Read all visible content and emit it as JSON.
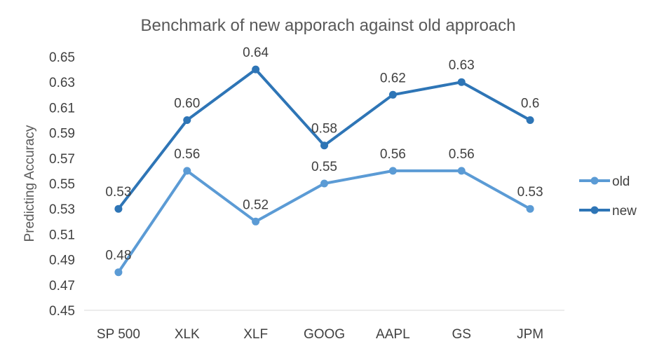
{
  "chart_data": {
    "type": "line",
    "title": "Benchmark of new apporach against old approach",
    "xlabel": "",
    "ylabel": "Predicting Accuracy",
    "categories": [
      "SP 500",
      "XLK",
      "XLF",
      "GOOG",
      "AAPL",
      "GS",
      "JPM"
    ],
    "ylim": [
      0.45,
      0.65
    ],
    "yticks": [
      "0.45",
      "0.47",
      "0.49",
      "0.51",
      "0.53",
      "0.55",
      "0.57",
      "0.59",
      "0.61",
      "0.63",
      "0.65"
    ],
    "grid": false,
    "legend": "right",
    "series": [
      {
        "name": "old",
        "color": "#5b9bd5",
        "values": [
          0.48,
          0.56,
          0.52,
          0.55,
          0.56,
          0.56,
          0.53
        ],
        "labels": [
          "0.48",
          "0.56",
          "0.52",
          "0.55",
          "0.56",
          "0.56",
          "0.53"
        ]
      },
      {
        "name": "new",
        "color": "#2e75b6",
        "values": [
          0.53,
          0.6,
          0.64,
          0.58,
          0.62,
          0.63,
          0.6
        ],
        "labels": [
          "0.53",
          "0.60",
          "0.64",
          "0.58",
          "0.62",
          "0.63",
          "0.6"
        ]
      }
    ]
  }
}
